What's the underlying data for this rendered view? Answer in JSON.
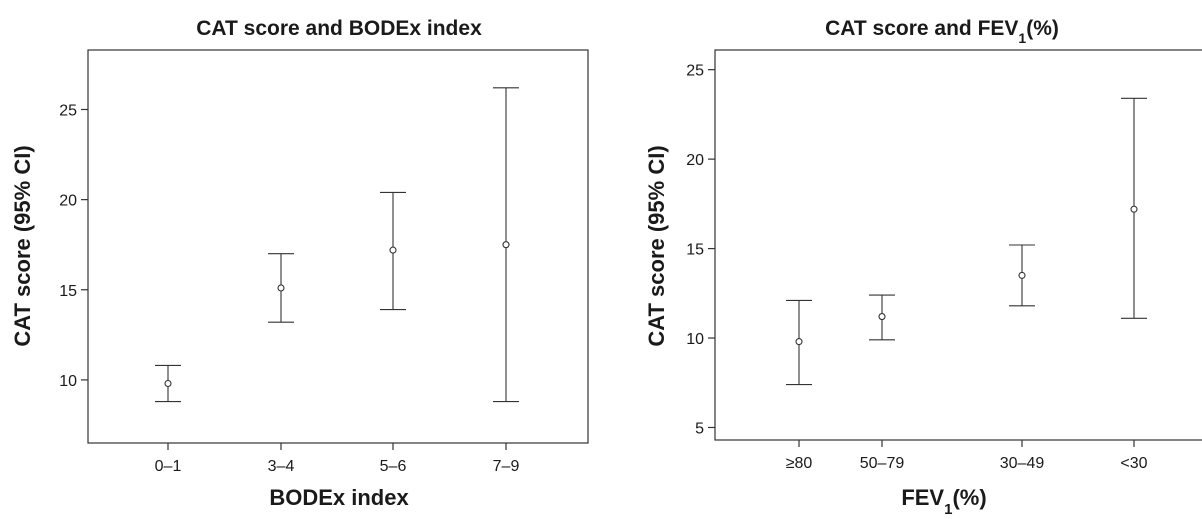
{
  "chart_data": [
    {
      "type": "errorbar",
      "title": "CAT score and BODEx index",
      "xlabel": "BODEx index",
      "ylabel": "CAT score (95% CI)",
      "categories": [
        "0–1",
        "3–4",
        "5–6",
        "7–9"
      ],
      "mean": [
        9.8,
        15.1,
        17.2,
        17.5
      ],
      "ci_lower": [
        8.8,
        13.2,
        13.9,
        8.8
      ],
      "ci_upper": [
        10.8,
        17.0,
        20.4,
        26.2
      ],
      "yticks": [
        10,
        15,
        20,
        25
      ],
      "ylim": [
        6.5,
        28.3
      ],
      "grid": false
    },
    {
      "type": "errorbar",
      "title": {
        "main": "CAT score and FEV",
        "sub": "1",
        "suffix": "(%)"
      },
      "xlabel": {
        "main": "FEV",
        "sub": "1",
        "suffix": "(%)"
      },
      "ylabel": "CAT score (95% CI)",
      "categories": [
        "≥80",
        "50–79",
        "30–49",
        "<30"
      ],
      "mean": [
        9.8,
        11.2,
        13.5,
        17.2
      ],
      "ci_lower": [
        7.4,
        9.9,
        11.8,
        11.1
      ],
      "ci_upper": [
        12.1,
        12.4,
        15.2,
        23.4
      ],
      "yticks": [
        5,
        10,
        15,
        20,
        25
      ],
      "ylim": [
        4.3,
        26.1
      ],
      "grid": false
    }
  ]
}
